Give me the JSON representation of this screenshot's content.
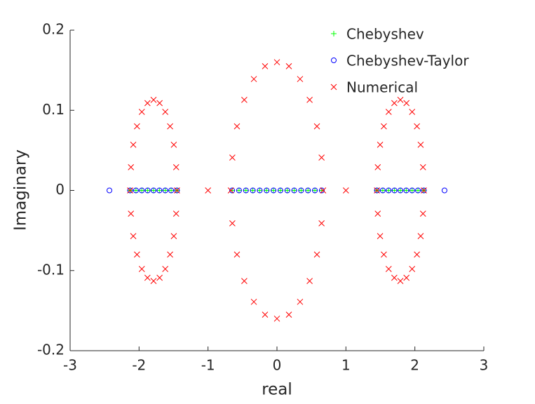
{
  "chart_data": {
    "type": "scatter",
    "x_label": "real",
    "y_label": "Imaginary",
    "xlim": [
      -3,
      3
    ],
    "xticks": [
      -3,
      -2,
      -1,
      0,
      1,
      2,
      3
    ],
    "ylim": [
      -0.2,
      0.2
    ],
    "yticks": [
      -0.2,
      -0.1,
      0,
      0.1,
      0.2
    ],
    "legend": "upper right",
    "series": [
      {
        "name": "Chebyshev",
        "color": "#00ff00",
        "marker": "+",
        "x": [
          -2.13,
          -2.045,
          -1.96,
          -1.875,
          -1.79,
          -1.705,
          -1.62,
          -1.535,
          -1.45,
          -0.65,
          -0.55,
          -0.45,
          -0.35,
          -0.25,
          -0.15,
          -0.05,
          0.05,
          0.15,
          0.25,
          0.35,
          0.45,
          0.55,
          0.65,
          1.45,
          1.535,
          1.62,
          1.705,
          1.79,
          1.875,
          1.96,
          2.045,
          2.13
        ],
        "values": [
          0,
          0,
          0,
          0,
          0,
          0,
          0,
          0,
          0,
          0,
          0,
          0,
          0,
          0,
          0,
          0,
          0,
          0,
          0,
          0,
          0,
          0,
          0,
          0,
          0,
          0,
          0,
          0,
          0,
          0,
          0,
          0
        ]
      },
      {
        "name": "Chebyshev-Taylor",
        "color": "#0000ff",
        "marker": "o",
        "x": [
          -2.43,
          -2.13,
          -2.045,
          -1.96,
          -1.875,
          -1.79,
          -1.705,
          -1.62,
          -1.535,
          -1.45,
          -0.65,
          -0.55,
          -0.45,
          -0.35,
          -0.25,
          -0.15,
          -0.05,
          0.05,
          0.15,
          0.25,
          0.35,
          0.45,
          0.55,
          0.65,
          1.45,
          1.535,
          1.62,
          1.705,
          1.79,
          1.875,
          1.96,
          2.045,
          2.13,
          2.43
        ],
        "values": [
          0,
          0,
          0,
          0,
          0,
          0,
          0,
          0,
          0,
          0,
          0,
          0,
          0,
          0,
          0,
          0,
          0,
          0,
          0,
          0,
          0,
          0,
          0,
          0,
          0,
          0,
          0,
          0,
          0,
          0,
          0,
          0,
          0,
          0
        ]
      },
      {
        "name": "Numerical",
        "color": "#ff0000",
        "marker": "x",
        "x": [
          0.67,
          0.647,
          0.58,
          0.474,
          0.335,
          0.173,
          0,
          -0.173,
          -0.335,
          -0.474,
          -0.58,
          -0.647,
          -0.67,
          -0.647,
          -0.58,
          -0.474,
          -0.335,
          -0.173,
          0,
          0.173,
          0.335,
          0.474,
          0.58,
          0.647,
          -1.45,
          -1.462,
          -1.496,
          -1.55,
          -1.62,
          -1.702,
          -1.79,
          -1.878,
          -1.96,
          -2.03,
          -2.084,
          -2.118,
          -2.13,
          -2.118,
          -2.084,
          -2.03,
          -1.96,
          -1.878,
          -1.79,
          -1.702,
          -1.62,
          -1.55,
          -1.496,
          -1.462,
          1.45,
          1.462,
          1.496,
          1.55,
          1.62,
          1.702,
          1.79,
          1.878,
          1.96,
          2.03,
          2.084,
          2.118,
          2.13,
          2.118,
          2.084,
          2.03,
          1.96,
          1.878,
          1.79,
          1.702,
          1.62,
          1.55,
          1.496,
          1.462,
          -1,
          1
        ],
        "values": [
          0,
          0.041,
          0.08,
          0.113,
          0.139,
          0.155,
          0.16,
          0.155,
          0.139,
          0.113,
          0.08,
          0.041,
          0,
          -0.041,
          -0.08,
          -0.113,
          -0.139,
          -0.155,
          -0.16,
          -0.155,
          -0.139,
          -0.113,
          -0.08,
          -0.041,
          0,
          0.029,
          0.057,
          0.08,
          0.098,
          0.109,
          0.113,
          0.109,
          0.098,
          0.08,
          0.057,
          0.029,
          0,
          -0.029,
          -0.057,
          -0.08,
          -0.098,
          -0.109,
          -0.113,
          -0.109,
          -0.098,
          -0.08,
          -0.057,
          -0.029,
          0,
          0.029,
          0.057,
          0.08,
          0.098,
          0.109,
          0.113,
          0.109,
          0.098,
          0.08,
          0.057,
          0.029,
          0,
          -0.029,
          -0.057,
          -0.08,
          -0.098,
          -0.109,
          -0.113,
          -0.109,
          -0.098,
          -0.08,
          -0.057,
          -0.029,
          0,
          0
        ]
      }
    ]
  }
}
